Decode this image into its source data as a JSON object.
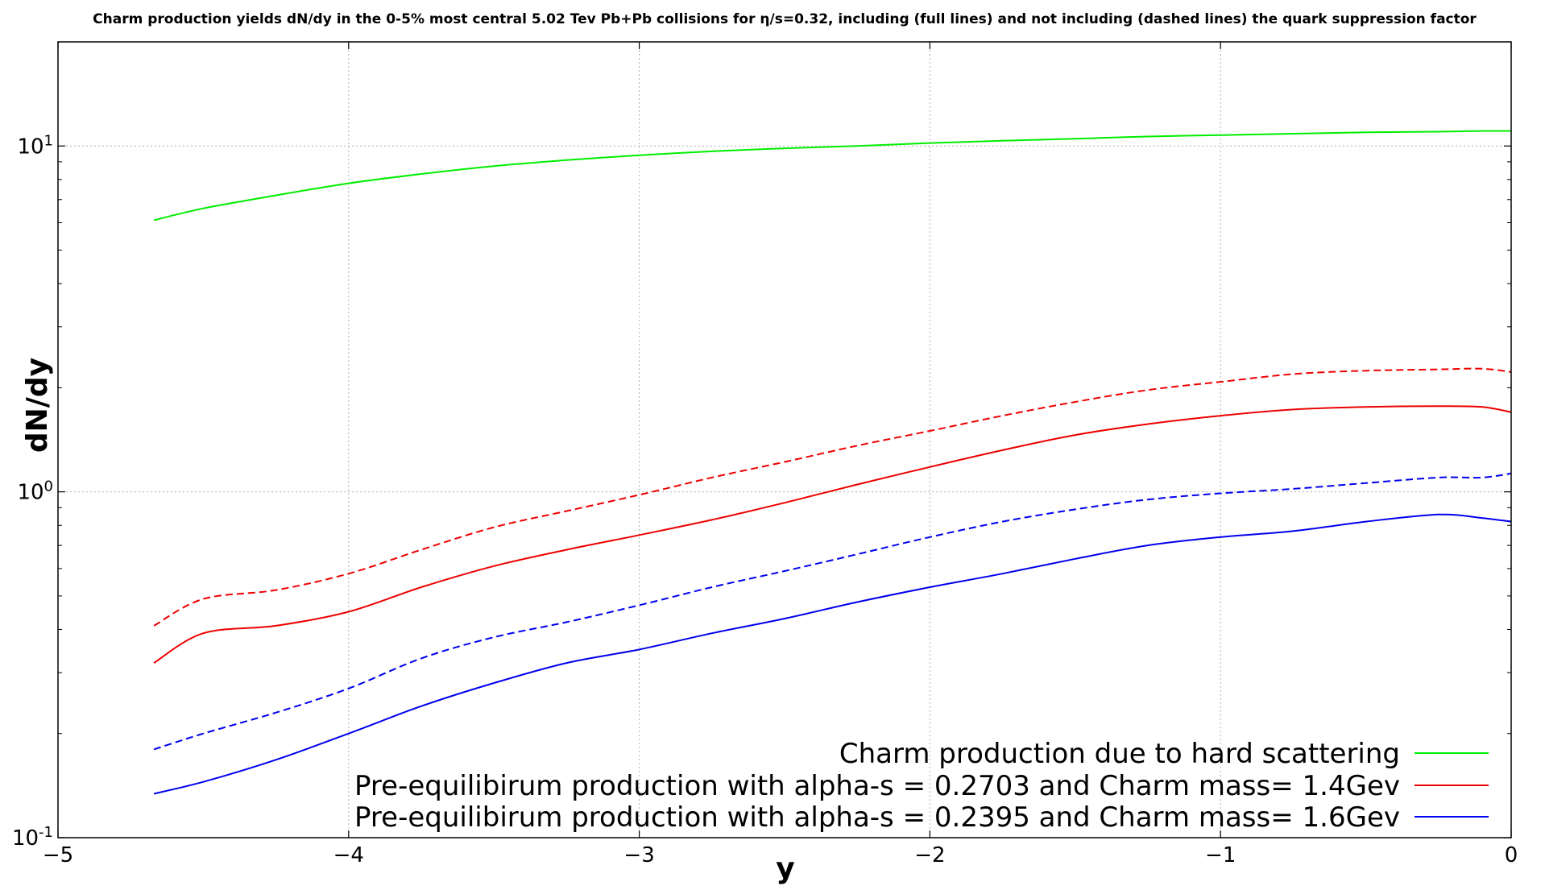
{
  "chart_data": {
    "type": "line",
    "title": "Charm production yields dN/dy in the 0-5% most central 5.02 Tev Pb+Pb collisions for η/s=0.32, including (full lines) and not including (dashed lines) the quark suppression factor",
    "xlabel": "y",
    "ylabel": "dN/dy",
    "xlim": [
      -5,
      0
    ],
    "ylim": [
      0.1,
      20
    ],
    "yscale": "log",
    "grid": true,
    "legend_position": "lower-right",
    "x_ticks": [
      {
        "value": -5,
        "label": "−5"
      },
      {
        "value": -4,
        "label": "−4"
      },
      {
        "value": -3,
        "label": "−3"
      },
      {
        "value": -2,
        "label": "−2"
      },
      {
        "value": -1,
        "label": "−1"
      },
      {
        "value": 0,
        "label": "0"
      }
    ],
    "y_ticks": [
      {
        "value": 0.1,
        "base": "10",
        "exp": "-1"
      },
      {
        "value": 1,
        "base": "10",
        "exp": "0"
      },
      {
        "value": 10,
        "base": "10",
        "exp": "1"
      }
    ],
    "legend": [
      {
        "label": "Charm production due to hard scattering",
        "color": "#00ee00"
      },
      {
        "label": "Pre-equilibirum production with alpha-s = 0.2703 and Charm mass= 1.4Gev",
        "color": "#ee0000"
      },
      {
        "label": "Pre-equilibirum production with alpha-s = 0.2395 and Charm mass= 1.6Gev",
        "color": "#0000ee"
      }
    ],
    "x": [
      -4.67,
      -4.5,
      -4.25,
      -4.0,
      -3.75,
      -3.5,
      -3.25,
      -3.0,
      -2.75,
      -2.5,
      -2.25,
      -2.0,
      -1.75,
      -1.5,
      -1.25,
      -1.0,
      -0.75,
      -0.5,
      -0.25,
      -0.1,
      0.0
    ],
    "series": [
      {
        "color": "#00ee00",
        "dash": false,
        "values": [
          6.1,
          6.6,
          7.2,
          7.8,
          8.3,
          8.75,
          9.1,
          9.4,
          9.65,
          9.85,
          10.0,
          10.2,
          10.35,
          10.5,
          10.65,
          10.75,
          10.85,
          10.95,
          11.0,
          11.05,
          11.05
        ]
      },
      {
        "color": "#ee0000",
        "dash": true,
        "values": [
          0.41,
          0.49,
          0.52,
          0.58,
          0.68,
          0.79,
          0.88,
          0.98,
          1.1,
          1.22,
          1.36,
          1.5,
          1.66,
          1.82,
          1.97,
          2.08,
          2.19,
          2.24,
          2.26,
          2.27,
          2.22
        ]
      },
      {
        "color": "#ee0000",
        "dash": false,
        "values": [
          0.32,
          0.39,
          0.41,
          0.45,
          0.53,
          0.61,
          0.68,
          0.75,
          0.83,
          0.93,
          1.05,
          1.18,
          1.32,
          1.46,
          1.57,
          1.66,
          1.73,
          1.76,
          1.77,
          1.76,
          1.7
        ]
      },
      {
        "color": "#0000ee",
        "dash": true,
        "values": [
          0.18,
          0.2,
          0.23,
          0.27,
          0.33,
          0.38,
          0.42,
          0.47,
          0.53,
          0.59,
          0.66,
          0.74,
          0.82,
          0.89,
          0.95,
          0.99,
          1.02,
          1.06,
          1.1,
          1.1,
          1.13
        ]
      },
      {
        "color": "#0000ee",
        "dash": false,
        "values": [
          0.134,
          0.145,
          0.168,
          0.2,
          0.24,
          0.28,
          0.32,
          0.35,
          0.39,
          0.43,
          0.48,
          0.53,
          0.58,
          0.64,
          0.7,
          0.74,
          0.77,
          0.82,
          0.86,
          0.84,
          0.82
        ]
      }
    ]
  }
}
